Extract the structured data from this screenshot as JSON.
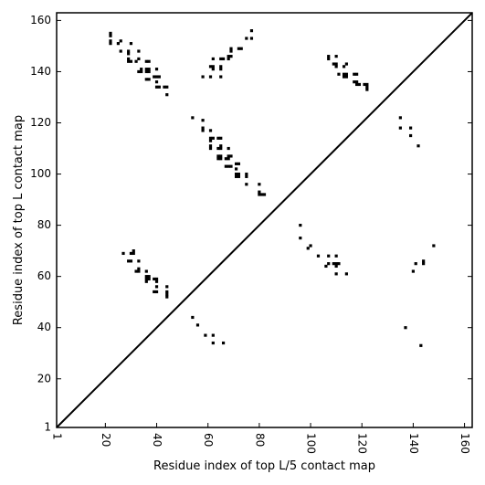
{
  "chart_data": {
    "type": "scatter",
    "title": "",
    "xlabel": "Residue index of top L/5 contact map",
    "ylabel": "Residue index of top L contact map",
    "xlim": [
      1,
      163
    ],
    "ylim": [
      1,
      163
    ],
    "x_ticks": [
      1,
      20,
      40,
      60,
      80,
      100,
      120,
      140,
      160
    ],
    "y_ticks": [
      1,
      20,
      40,
      60,
      80,
      100,
      120,
      140,
      160
    ],
    "x_tick_labels": [
      "1",
      "20",
      "40",
      "60",
      "80",
      "100",
      "120",
      "140",
      "160"
    ],
    "y_tick_labels": [
      "1",
      "20",
      "40",
      "60",
      "80",
      "100",
      "120",
      "140",
      "160"
    ],
    "x_tick_rotation": -90,
    "grid": false,
    "legend": null,
    "diagonal_line": true,
    "marker": "square",
    "color": "#000000",
    "series": [
      {
        "points": [
          [
            22,
            155
          ],
          [
            22,
            154
          ],
          [
            22,
            152
          ],
          [
            22,
            151
          ],
          [
            25,
            151
          ],
          [
            26,
            152
          ],
          [
            30,
            151
          ],
          [
            26,
            148
          ],
          [
            29,
            148
          ],
          [
            29,
            147
          ],
          [
            29,
            145
          ],
          [
            29,
            144
          ],
          [
            30,
            144
          ],
          [
            32,
            144
          ],
          [
            33,
            145
          ],
          [
            33,
            148
          ],
          [
            34,
            141
          ],
          [
            33,
            140
          ],
          [
            34,
            140
          ],
          [
            36,
            144
          ],
          [
            37,
            144
          ],
          [
            36,
            141
          ],
          [
            37,
            141
          ],
          [
            36,
            140
          ],
          [
            37,
            140
          ],
          [
            36,
            137
          ],
          [
            37,
            137
          ],
          [
            40,
            141
          ],
          [
            39,
            138
          ],
          [
            40,
            138
          ],
          [
            41,
            138
          ],
          [
            40,
            136
          ],
          [
            40,
            134
          ],
          [
            41,
            134
          ],
          [
            43,
            134
          ],
          [
            44,
            134
          ],
          [
            44,
            131
          ],
          [
            58,
            138
          ],
          [
            61,
            138
          ],
          [
            61,
            142
          ],
          [
            62,
            142
          ],
          [
            62,
            141
          ],
          [
            62,
            145
          ],
          [
            65,
            138
          ],
          [
            65,
            145
          ],
          [
            66,
            145
          ],
          [
            65,
            142
          ],
          [
            65,
            141
          ],
          [
            68,
            145
          ],
          [
            68,
            146
          ],
          [
            69,
            146
          ],
          [
            69,
            148
          ],
          [
            69,
            149
          ],
          [
            72,
            149
          ],
          [
            73,
            149
          ],
          [
            75,
            153
          ],
          [
            77,
            153
          ],
          [
            77,
            156
          ],
          [
            54,
            122
          ],
          [
            58,
            121
          ],
          [
            58,
            118
          ],
          [
            58,
            117
          ],
          [
            61,
            117
          ],
          [
            61,
            114
          ],
          [
            61,
            113
          ],
          [
            62,
            114
          ],
          [
            61,
            110
          ],
          [
            61,
            111
          ],
          [
            64,
            114
          ],
          [
            65,
            114
          ],
          [
            64,
            110
          ],
          [
            65,
            110
          ],
          [
            65,
            111
          ],
          [
            68,
            110
          ],
          [
            64,
            107
          ],
          [
            65,
            107
          ],
          [
            64,
            106
          ],
          [
            65,
            106
          ],
          [
            67,
            106
          ],
          [
            68,
            107
          ],
          [
            68,
            106
          ],
          [
            69,
            107
          ],
          [
            67,
            103
          ],
          [
            68,
            103
          ],
          [
            69,
            103
          ],
          [
            71,
            104
          ],
          [
            72,
            104
          ],
          [
            71,
            102
          ],
          [
            71,
            100
          ],
          [
            72,
            100
          ],
          [
            71,
            99
          ],
          [
            72,
            99
          ],
          [
            75,
            100
          ],
          [
            75,
            99
          ],
          [
            75,
            96
          ],
          [
            80,
            96
          ],
          [
            80,
            93
          ],
          [
            80,
            92
          ],
          [
            81,
            92
          ],
          [
            82,
            92
          ],
          [
            107,
            146
          ],
          [
            107,
            145
          ],
          [
            110,
            146
          ],
          [
            109,
            143
          ],
          [
            110,
            143
          ],
          [
            110,
            142
          ],
          [
            113,
            142
          ],
          [
            114,
            143
          ],
          [
            111,
            139
          ],
          [
            113,
            139
          ],
          [
            114,
            139
          ],
          [
            113,
            138
          ],
          [
            114,
            138
          ],
          [
            117,
            139
          ],
          [
            118,
            139
          ],
          [
            117,
            136
          ],
          [
            118,
            136
          ],
          [
            118,
            135
          ],
          [
            119,
            135
          ],
          [
            121,
            135
          ],
          [
            122,
            135
          ],
          [
            122,
            134
          ],
          [
            122,
            133
          ],
          [
            135,
            122
          ],
          [
            135,
            118
          ],
          [
            139,
            118
          ],
          [
            139,
            115
          ],
          [
            142,
            111
          ],
          [
            27,
            69
          ],
          [
            30,
            69
          ],
          [
            31,
            69
          ],
          [
            31,
            70
          ],
          [
            29,
            66
          ],
          [
            30,
            66
          ],
          [
            33,
            66
          ],
          [
            32,
            62
          ],
          [
            33,
            62
          ],
          [
            33,
            63
          ],
          [
            36,
            62
          ],
          [
            36,
            60
          ],
          [
            37,
            60
          ],
          [
            36,
            59
          ],
          [
            37,
            59
          ],
          [
            36,
            58
          ],
          [
            39,
            59
          ],
          [
            40,
            59
          ],
          [
            40,
            58
          ],
          [
            40,
            56
          ],
          [
            44,
            56
          ],
          [
            39,
            54
          ],
          [
            40,
            54
          ],
          [
            44,
            54
          ],
          [
            44,
            53
          ],
          [
            44,
            52
          ],
          [
            96,
            80
          ],
          [
            96,
            75
          ],
          [
            99,
            71
          ],
          [
            100,
            72
          ],
          [
            103,
            68
          ],
          [
            106,
            64
          ],
          [
            107,
            65
          ],
          [
            107,
            68
          ],
          [
            110,
            68
          ],
          [
            109,
            65
          ],
          [
            110,
            65
          ],
          [
            111,
            65
          ],
          [
            110,
            64
          ],
          [
            110,
            61
          ],
          [
            114,
            61
          ],
          [
            140,
            62
          ],
          [
            141,
            65
          ],
          [
            144,
            65
          ],
          [
            144,
            66
          ],
          [
            148,
            72
          ],
          [
            137,
            40
          ],
          [
            143,
            33
          ],
          [
            54,
            44
          ],
          [
            56,
            41
          ],
          [
            59,
            37
          ],
          [
            62,
            37
          ],
          [
            62,
            34
          ],
          [
            66,
            34
          ]
        ]
      }
    ]
  }
}
